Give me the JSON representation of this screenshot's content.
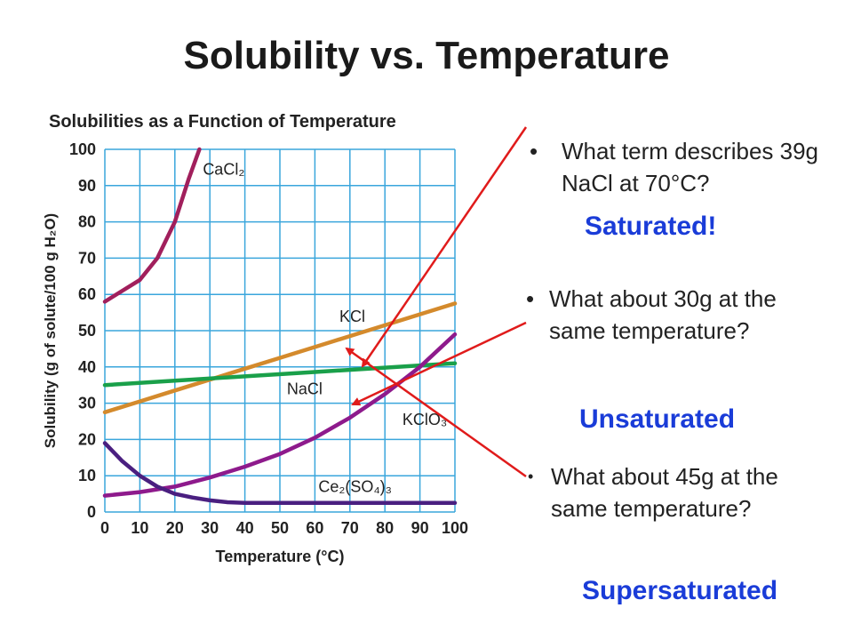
{
  "slide": {
    "title": "Solubility vs. Temperature"
  },
  "chart_data": {
    "type": "line",
    "title": "Solubilities as a Function of Temperature",
    "xlabel": "Temperature (°C)",
    "ylabel": "Solubility (g of solute/100 g H₂O)",
    "xlim": [
      0,
      100
    ],
    "ylim": [
      0,
      100
    ],
    "x_ticks": [
      "0",
      "10",
      "20",
      "30",
      "40",
      "50",
      "60",
      "70",
      "80",
      "90",
      "100"
    ],
    "y_ticks": [
      "0",
      "10",
      "20",
      "30",
      "40",
      "50",
      "60",
      "70",
      "80",
      "90",
      "100"
    ],
    "grid": true,
    "series": [
      {
        "name": "CaCl₂",
        "color": "#a11f5c",
        "x": [
          0,
          5,
          10,
          15,
          20,
          24,
          27
        ],
        "y": [
          58,
          61,
          64,
          70,
          80,
          92,
          100
        ]
      },
      {
        "name": "KCl",
        "color": "#d48a2c",
        "x": [
          0,
          10,
          20,
          30,
          40,
          50,
          60,
          70,
          80,
          90,
          100
        ],
        "y": [
          27.5,
          30.5,
          33.5,
          36.5,
          39.5,
          42.5,
          45.5,
          48.5,
          51.5,
          54.5,
          57.5
        ]
      },
      {
        "name": "NaCl",
        "color": "#1aa04a",
        "x": [
          0,
          20,
          40,
          60,
          80,
          100
        ],
        "y": [
          35,
          36.2,
          37.4,
          38.6,
          39.8,
          41
        ]
      },
      {
        "name": "KClO₃",
        "color": "#8e1a8c",
        "x": [
          0,
          10,
          20,
          30,
          40,
          50,
          60,
          70,
          80,
          90,
          100
        ],
        "y": [
          4.5,
          5.5,
          7,
          9.5,
          12.5,
          16,
          20.5,
          26,
          32.5,
          40,
          49
        ]
      },
      {
        "name": "Ce₂(SO₄)₃",
        "color": "#4a1f80",
        "x": [
          0,
          5,
          10,
          15,
          20,
          25,
          30,
          35,
          40,
          60,
          80,
          100
        ],
        "y": [
          19,
          14,
          10,
          7,
          5,
          4,
          3.2,
          2.7,
          2.5,
          2.5,
          2.5,
          2.5
        ]
      }
    ]
  },
  "questions": [
    {
      "text": "What term describes 39g NaCl at 70°C?",
      "answer": "Saturated!"
    },
    {
      "text": "What about 30g at the same temperature?",
      "answer": "Unsaturated"
    },
    {
      "text": "What about 45g at the same temperature?",
      "answer": "Supersaturated"
    }
  ],
  "bullet_glyph": "•",
  "arrow_color": "#e01b1b"
}
